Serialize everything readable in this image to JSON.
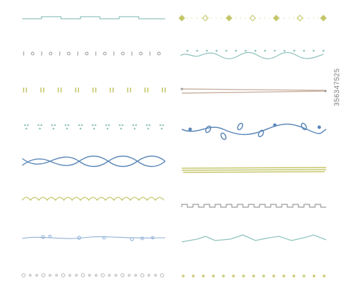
{
  "stock_id": "356347525",
  "colors": {
    "teal": "#8fc3bd",
    "gray": "#9a9a9a",
    "olive": "#c4c66a",
    "blue": "#5a86b8",
    "tan": "#c9b2a2",
    "pale_blue": "#8fb0d6"
  },
  "dividers": [
    "dashed-zigzag",
    "ring-dots",
    "double-ticks",
    "dot-clusters",
    "braided-waves",
    "scallops",
    "bead-line",
    "circle-dots",
    "diamond-dotted",
    "star-wave",
    "double-line-rule",
    "leaf-vine",
    "triple-line-brush",
    "square-wave",
    "peak-wave",
    "tiny-stars"
  ]
}
